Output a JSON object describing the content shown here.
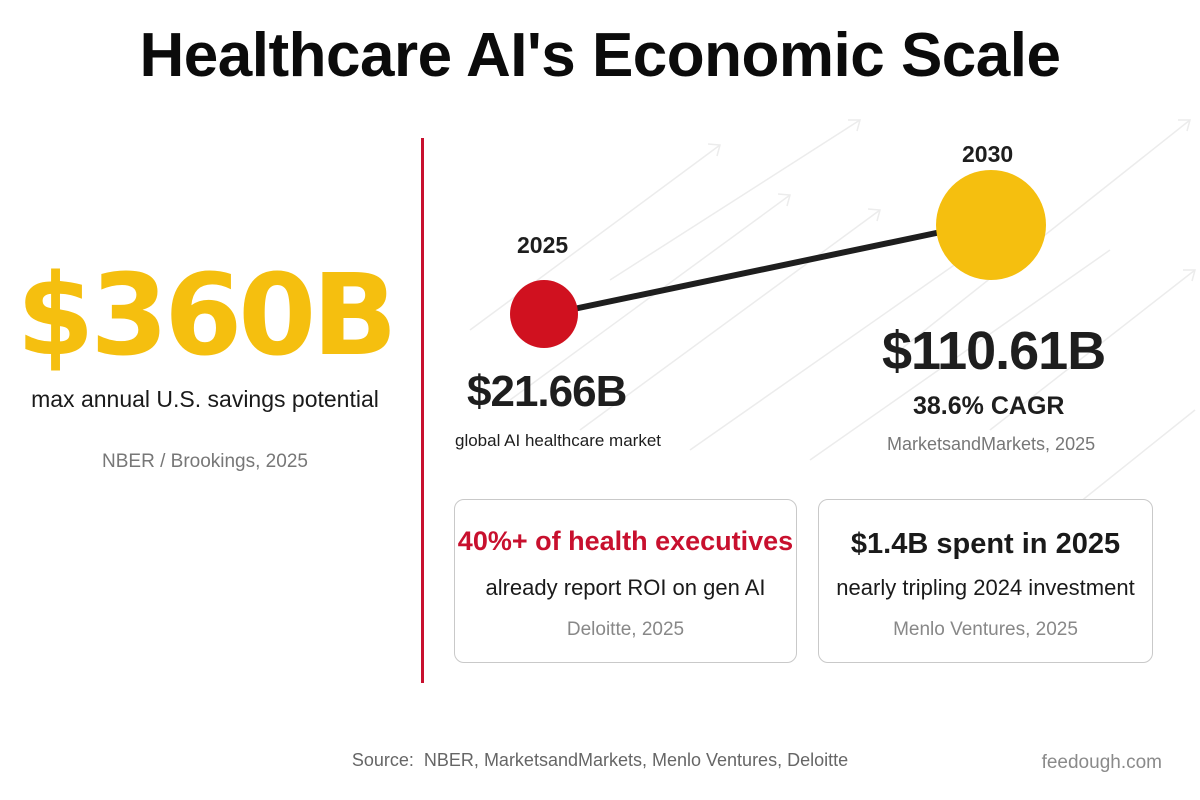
{
  "title": "Healthcare AI's Economic Scale",
  "left_stat": {
    "value": "$360B",
    "caption": "max annual U.S. savings potential",
    "source": "NBER / Brookings, 2025"
  },
  "market": {
    "start": {
      "year": "2025",
      "value": "$21.66B",
      "caption": "global AI healthcare market",
      "color": "#d0111f"
    },
    "end": {
      "year": "2030",
      "value": "$110.61B",
      "cagr": "38.6% CAGR",
      "source": "MarketsandMarkets, 2025",
      "color": "#f5bf0f"
    }
  },
  "cards": [
    {
      "headline": "40%+ of health executives",
      "body": "already report ROI on gen AI",
      "source": "Deloitte, 2025"
    },
    {
      "headline": "$1.4B spent in 2025",
      "body": "nearly tripling 2024 investment",
      "source": "Menlo Ventures, 2025"
    }
  ],
  "footer": {
    "source": "Source:  NBER, MarketsandMarkets, Menlo Ventures, Deloitte",
    "site": "feedough.com"
  },
  "colors": {
    "accent_yellow": "#f5bf0f",
    "accent_red": "#c8102e",
    "text_dark": "#1e1e1e"
  }
}
